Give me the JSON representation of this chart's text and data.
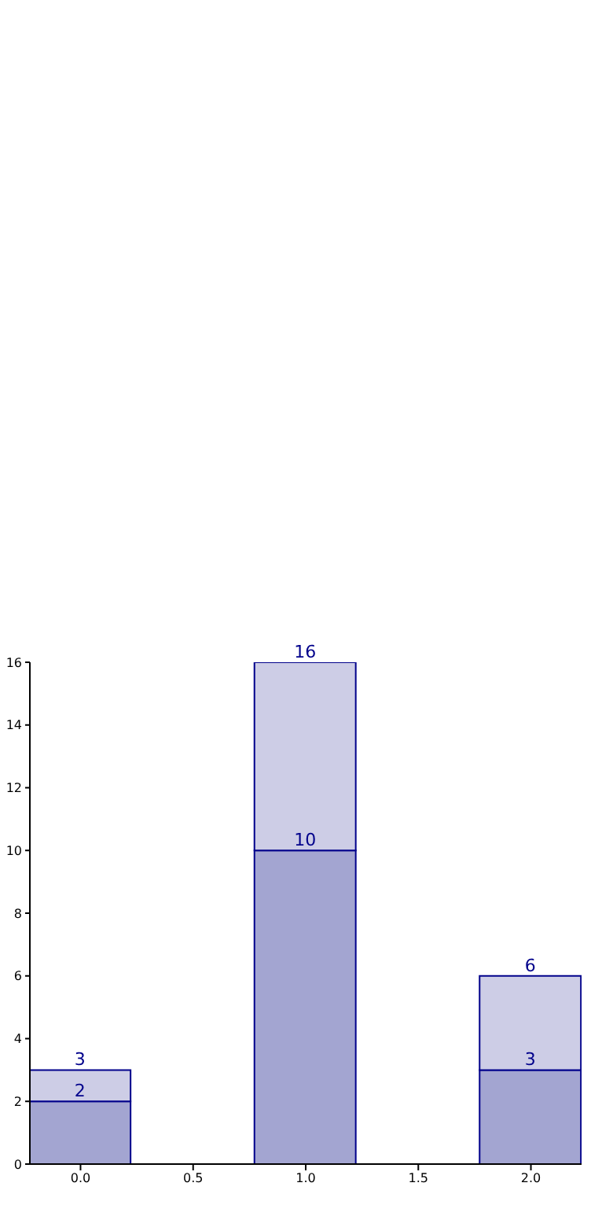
{
  "chart_data": {
    "type": "bar",
    "stacked": true,
    "x": [
      0,
      1,
      2
    ],
    "series": [
      {
        "color": "#a3a5d1",
        "values": [
          2,
          10,
          3
        ],
        "value_labels": [
          "2",
          "10",
          "3"
        ]
      },
      {
        "color": "#cdcde6",
        "values": [
          1,
          6,
          3
        ]
      }
    ],
    "totals": [
      "3",
      "16",
      "6"
    ],
    "xlim": [
      -0.225,
      2.225
    ],
    "xticks": [
      {
        "value": 0,
        "label": "0.0"
      },
      {
        "value": 0.5,
        "label": "0.5"
      },
      {
        "value": 1,
        "label": "1.0"
      },
      {
        "value": 1.5,
        "label": "1.5"
      },
      {
        "value": 2,
        "label": "2.0"
      }
    ],
    "ylim": [
      0,
      16
    ],
    "yticks": [
      0,
      2,
      4,
      6,
      8,
      10,
      12,
      14,
      16
    ],
    "grid": false
  }
}
